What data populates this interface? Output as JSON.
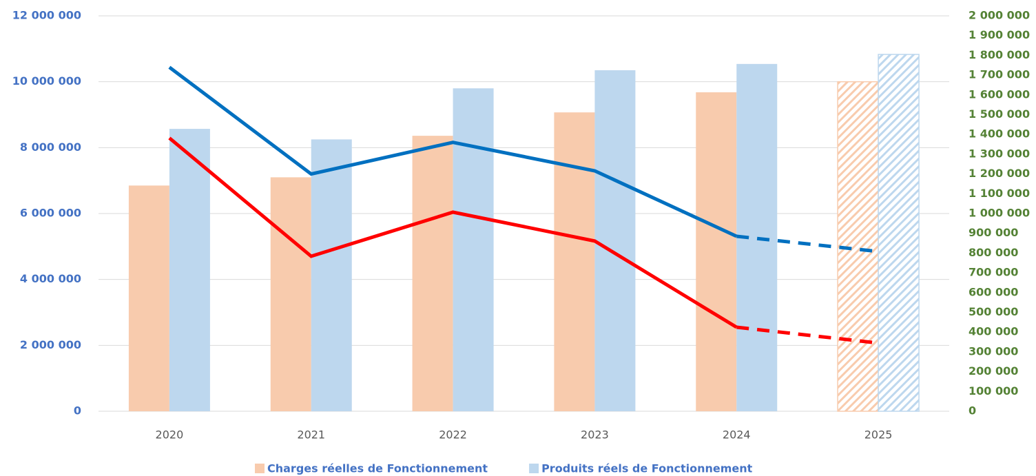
{
  "chart_data": {
    "type": "bar",
    "categories": [
      "2020",
      "2021",
      "2022",
      "2023",
      "2024",
      "2025"
    ],
    "forecast": [
      false,
      false,
      false,
      false,
      false,
      true
    ],
    "series": [
      {
        "name": "Charges réelles de Fonctionnement",
        "color": "#f8cbad",
        "values": [
          6850000,
          7100000,
          8360000,
          9070000,
          9680000,
          10000000
        ]
      },
      {
        "name": "Produits réels de Fonctionnement",
        "color": "#bdd7ee",
        "values": [
          8570000,
          8250000,
          9800000,
          10350000,
          10540000,
          10830000
        ]
      },
      {
        "type": "line",
        "axis": "y2",
        "color": "#0070c0",
        "values": [
          1740000,
          1200000,
          1360000,
          1216000,
          885000,
          808000
        ]
      },
      {
        "type": "line",
        "axis": "y2",
        "color": "#ff0000",
        "values": [
          1382000,
          784000,
          1007000,
          861000,
          425000,
          345000
        ]
      }
    ],
    "ylim": [
      0,
      12000000
    ],
    "yticks": [
      0,
      {
        "value": 2000000,
        "label": "2 000 000"
      },
      {
        "value": 4000000,
        "label": "4 000 000"
      },
      {
        "value": 6000000,
        "label": "6 000 000"
      },
      {
        "value": 8000000,
        "label": "8 000 000"
      },
      {
        "value": 10000000,
        "label": "10 000 000"
      },
      {
        "value": 12000000,
        "label": "12 000 000"
      }
    ],
    "y2lim": [
      0,
      2000000
    ],
    "y2ticks": [
      0,
      {
        "value": 100000,
        "label": "100 000"
      },
      {
        "value": 200000,
        "label": "200 000"
      },
      {
        "value": 300000,
        "label": "300 000"
      },
      {
        "value": 400000,
        "label": "400 000"
      },
      {
        "value": 500000,
        "label": "500 000"
      },
      {
        "value": 600000,
        "label": "600 000"
      },
      {
        "value": 700000,
        "label": "700 000"
      },
      {
        "value": 800000,
        "label": "800 000"
      },
      {
        "value": 900000,
        "label": "900 000"
      },
      {
        "value": 1000000,
        "label": "1 000 000"
      },
      {
        "value": 1100000,
        "label": "1 100 000"
      },
      {
        "value": 1200000,
        "label": "1 200 000"
      },
      {
        "value": 1300000,
        "label": "1 300 000"
      },
      {
        "value": 1400000,
        "label": "1 400 000"
      },
      {
        "value": 1500000,
        "label": "1 500 000"
      },
      {
        "value": 1600000,
        "label": "1 600 000"
      },
      {
        "value": 1700000,
        "label": "1 700 000"
      },
      {
        "value": 1800000,
        "label": "1 800 000"
      },
      {
        "value": 1900000,
        "label": "1 900 000"
      },
      {
        "value": 2000000,
        "label": "2 000 000"
      }
    ],
    "grid": true
  }
}
